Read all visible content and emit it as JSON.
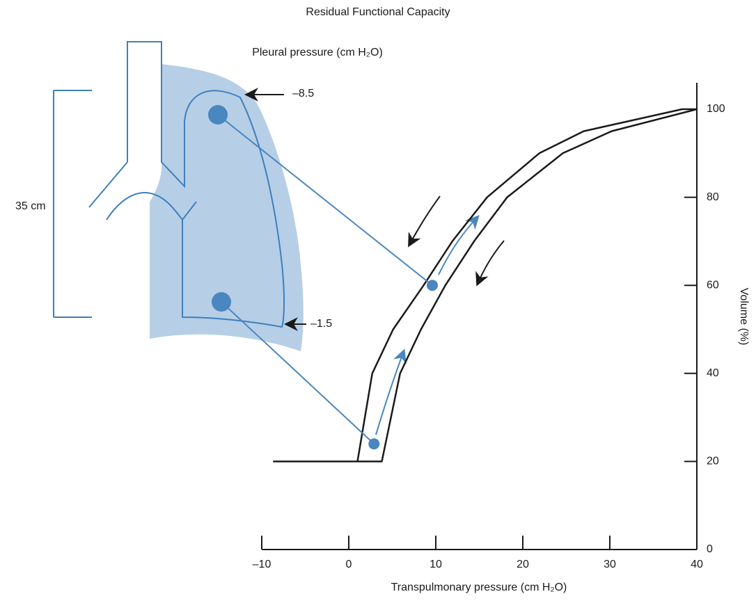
{
  "chart_data": {
    "type": "line",
    "title": "Residual Functional Capacity",
    "x_label": "Transpulmonary pressure (cm H₂O)",
    "y_label": "Volume (%)",
    "annotations": [
      "Pleural pressure (cm H₂O)",
      "–8.5",
      "–1.5",
      "35 cm"
    ],
    "xlim": [
      -10,
      40
    ],
    "ylim": [
      0,
      106
    ],
    "xticks": [
      {
        "value": -10,
        "label": "–10"
      },
      0,
      10,
      20,
      30,
      40
    ],
    "yticks": [
      0,
      20,
      40,
      60,
      80,
      100
    ],
    "y_axis_side": "right",
    "series": [
      {
        "color": "#1a1a1a",
        "x": [
          1,
          2.7,
          5.1,
          8.6,
          11.9,
          15.9,
          21.9,
          27,
          38.3,
          40
        ],
        "values": [
          20,
          40,
          50,
          60,
          70,
          80,
          90,
          95,
          100,
          100
        ]
      },
      {
        "color": "#1a1a1a",
        "x": [
          -8.7,
          3.8,
          5.9,
          8.3,
          11.1,
          14.4,
          18.2,
          24.6,
          30.2,
          40
        ],
        "values": [
          20,
          20,
          40,
          50,
          60,
          70,
          80,
          90,
          95,
          100
        ]
      }
    ],
    "points": {
      "color": "#4a86c0",
      "x": [
        9.6,
        2.9
      ],
      "values": [
        60,
        24
      ]
    }
  }
}
